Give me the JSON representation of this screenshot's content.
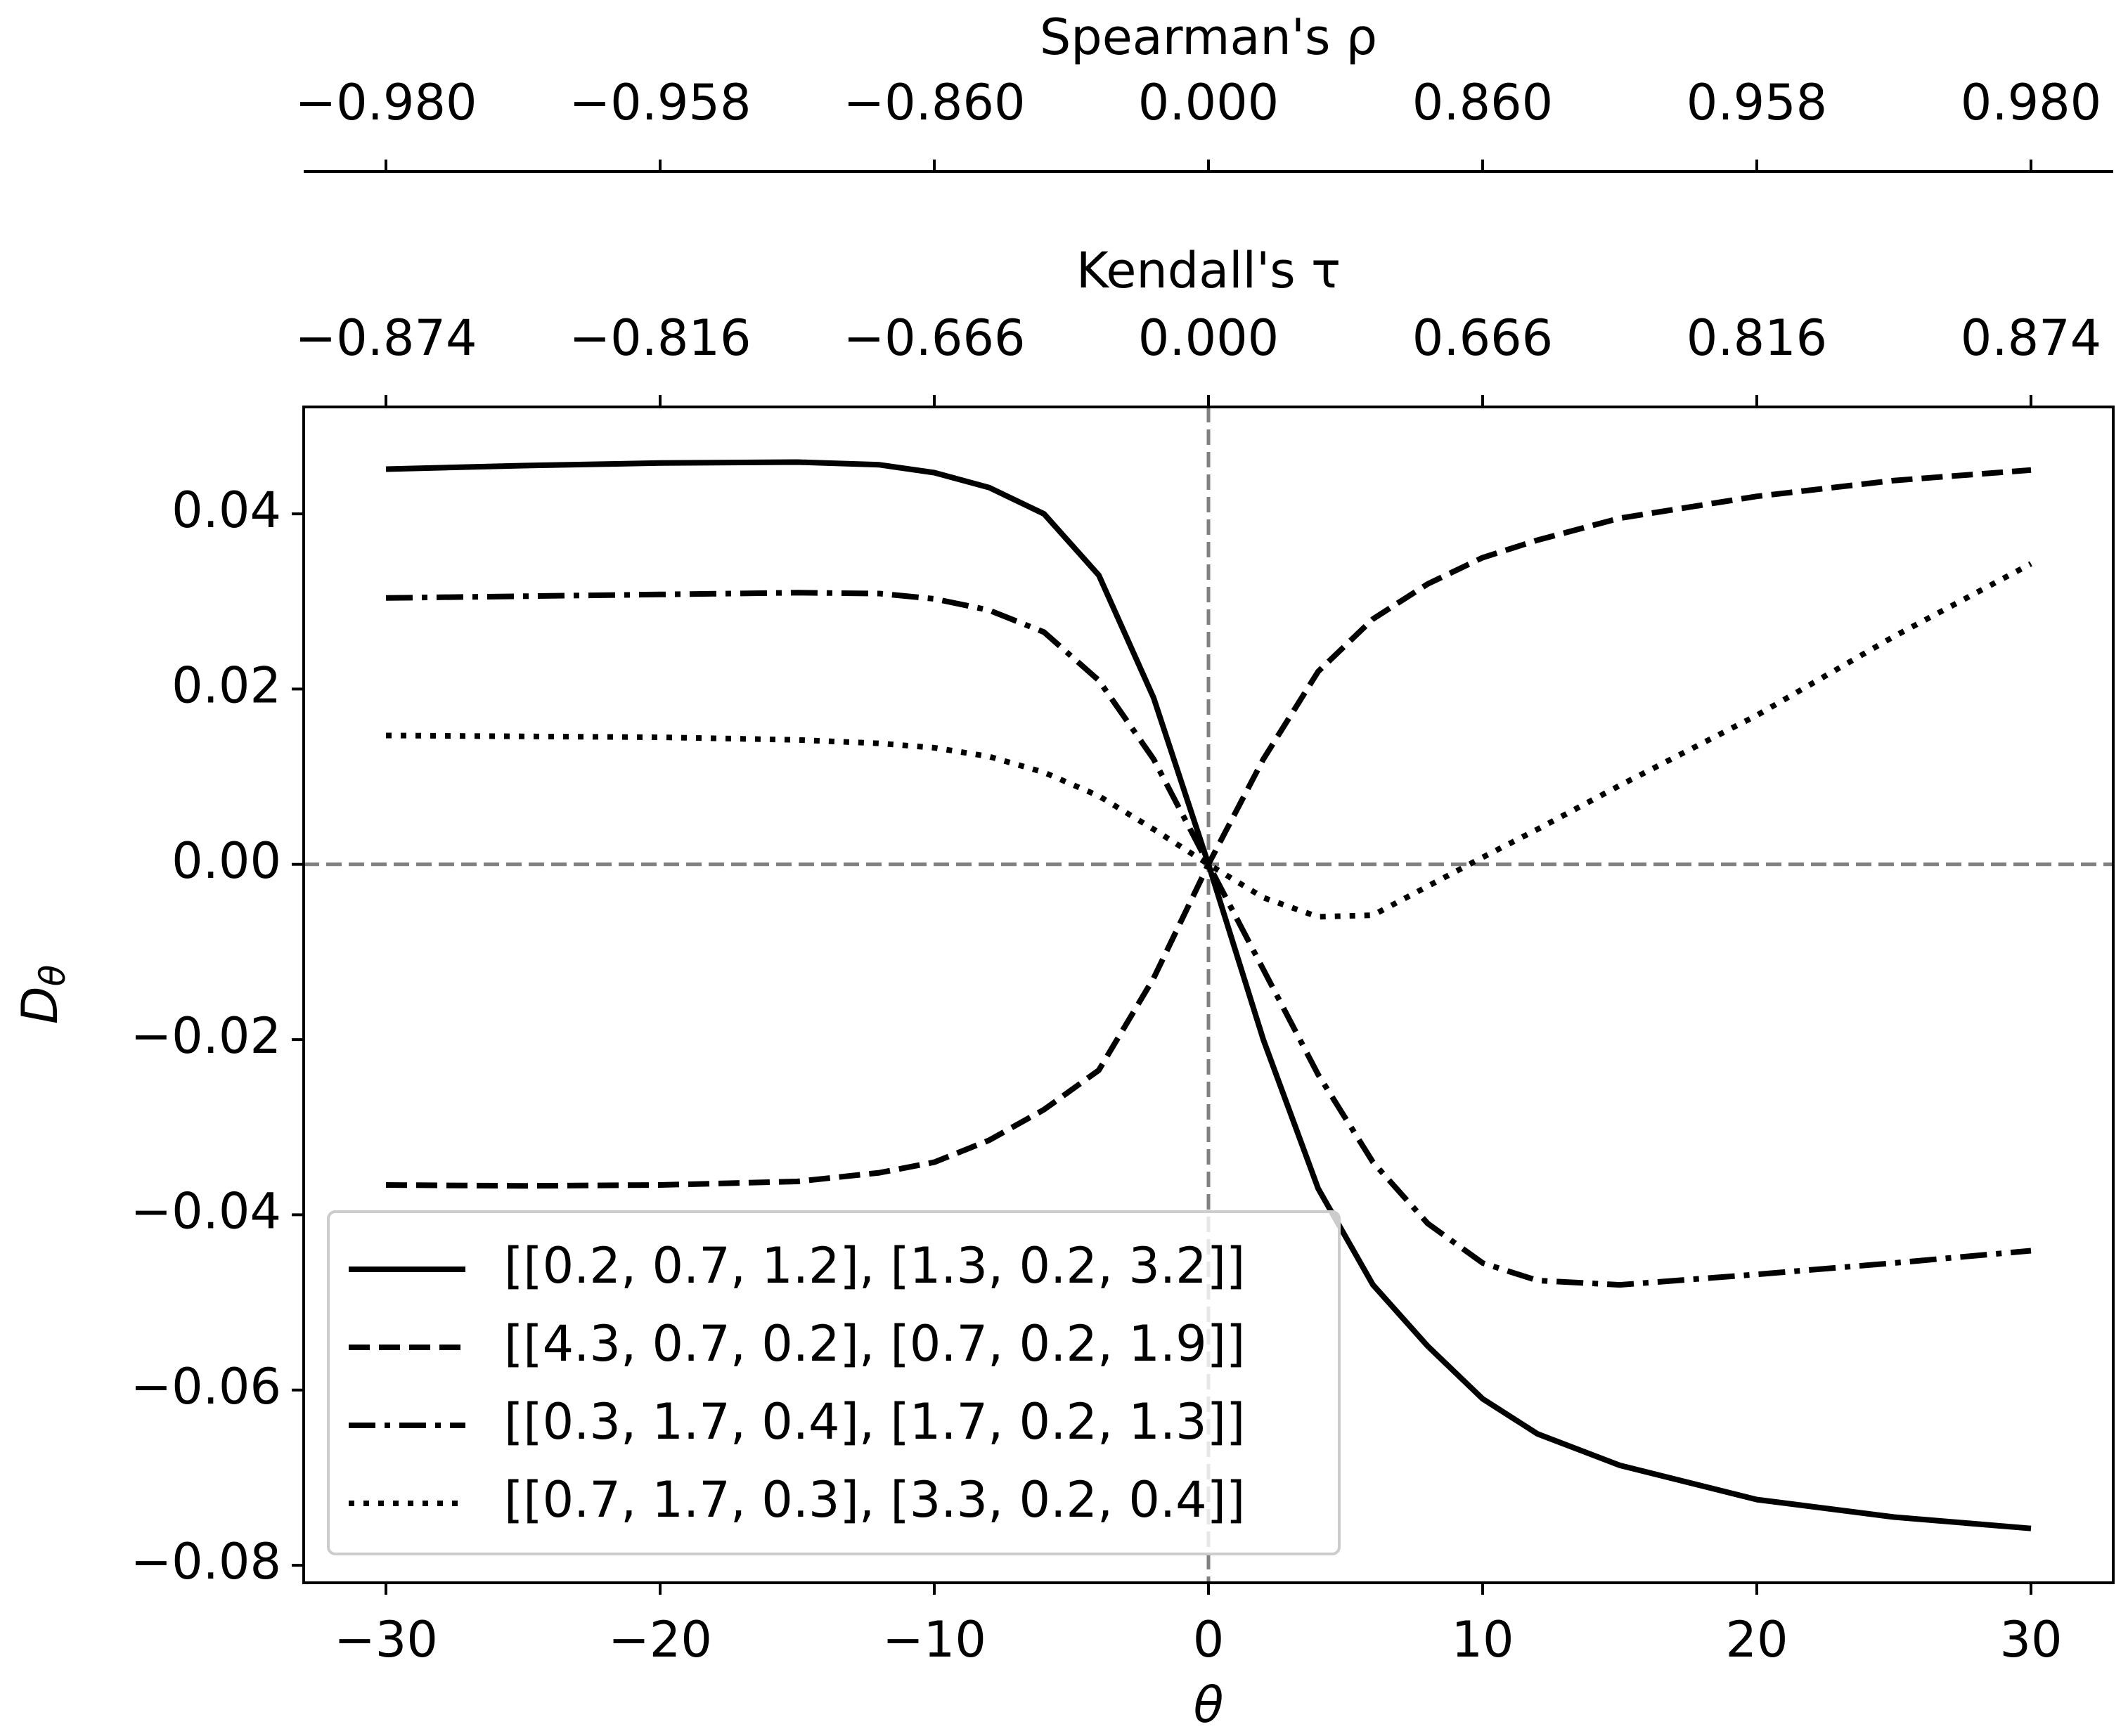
{
  "chart_data": {
    "type": "line",
    "xlabel": "θ",
    "ylabel": {
      "main": "D",
      "sub": "θ"
    },
    "top_axis_1": {
      "label": "Kendall's τ",
      "ticks": [
        {
          "value": -30,
          "label": "−0.874"
        },
        {
          "value": -20,
          "label": "−0.816"
        },
        {
          "value": -10,
          "label": "−0.666"
        },
        {
          "value": 0,
          "label": "0.000"
        },
        {
          "value": 10,
          "label": "0.666"
        },
        {
          "value": 20,
          "label": "0.816"
        },
        {
          "value": 30,
          "label": "0.874"
        }
      ]
    },
    "top_axis_2": {
      "label": "Spearman's ρ",
      "ticks": [
        {
          "value": -30,
          "label": "−0.980"
        },
        {
          "value": -20,
          "label": "−0.958"
        },
        {
          "value": -10,
          "label": "−0.860"
        },
        {
          "value": 0,
          "label": "0.000"
        },
        {
          "value": 10,
          "label": "0.860"
        },
        {
          "value": 20,
          "label": "0.958"
        },
        {
          "value": 30,
          "label": "0.980"
        }
      ]
    },
    "x": [
      -30,
      -25,
      -20,
      -15,
      -12,
      -10,
      -8,
      -6,
      -4,
      -2,
      0,
      2,
      4,
      6,
      8,
      10,
      12,
      15,
      20,
      25,
      30
    ],
    "series": [
      {
        "name": "[[0.2, 0.7, 1.2], [1.3, 0.2, 3.2]]",
        "color": "#000000",
        "linestyle": "solid",
        "values": [
          0.0451,
          0.0455,
          0.0458,
          0.0459,
          0.0456,
          0.0447,
          0.043,
          0.04,
          0.033,
          0.019,
          0.0,
          -0.02,
          -0.037,
          -0.048,
          -0.055,
          -0.061,
          -0.065,
          -0.0686,
          -0.0725,
          -0.0745,
          -0.0758
        ]
      },
      {
        "name": "[[4.3, 0.7, 0.2], [0.7, 0.2, 1.9]]",
        "color": "#000000",
        "linestyle": "dashed",
        "values": [
          -0.0366,
          -0.0367,
          -0.0366,
          -0.0362,
          -0.0352,
          -0.034,
          -0.0315,
          -0.028,
          -0.0235,
          -0.013,
          0.0,
          0.012,
          0.022,
          0.028,
          0.032,
          0.035,
          0.037,
          0.0395,
          0.042,
          0.0438,
          0.045
        ]
      },
      {
        "name": "[[0.3, 1.7, 0.4], [1.7, 0.2, 1.3]]",
        "color": "#000000",
        "linestyle": "dashdot",
        "values": [
          0.0304,
          0.0306,
          0.0308,
          0.031,
          0.0309,
          0.0303,
          0.029,
          0.0265,
          0.021,
          0.012,
          0.0,
          -0.012,
          -0.024,
          -0.034,
          -0.041,
          -0.0455,
          -0.0475,
          -0.048,
          -0.0468,
          -0.0455,
          -0.0441
        ]
      },
      {
        "name": "[[0.7, 1.7, 0.3], [3.3, 0.2, 0.4]]",
        "color": "#000000",
        "linestyle": "dotted",
        "values": [
          0.0147,
          0.0146,
          0.0145,
          0.0142,
          0.0138,
          0.0133,
          0.0123,
          0.0105,
          0.0078,
          0.004,
          0.0,
          -0.0038,
          -0.006,
          -0.0058,
          -0.0025,
          0.0008,
          0.004,
          0.009,
          0.017,
          0.026,
          0.0343
        ]
      }
    ],
    "xlim": [
      -33,
      33
    ],
    "ylim": [
      -0.082,
      0.0522
    ],
    "xticks": [
      {
        "value": -30,
        "label": "−30"
      },
      {
        "value": -20,
        "label": "−20"
      },
      {
        "value": -10,
        "label": "−10"
      },
      0,
      10,
      20,
      30
    ],
    "yticks": [
      {
        "value": -0.08,
        "label": "−0.08"
      },
      {
        "value": -0.06,
        "label": "−0.06"
      },
      {
        "value": -0.04,
        "label": "−0.04"
      },
      {
        "value": -0.02,
        "label": "−0.02"
      },
      {
        "value": 0,
        "label": "0.00"
      },
      {
        "value": 0.02,
        "label": "0.02"
      },
      {
        "value": 0.04,
        "label": "0.04"
      }
    ],
    "reference_lines": {
      "x": 0,
      "y": 0,
      "color": "#808080"
    },
    "grid": false,
    "legend": "lower left"
  }
}
